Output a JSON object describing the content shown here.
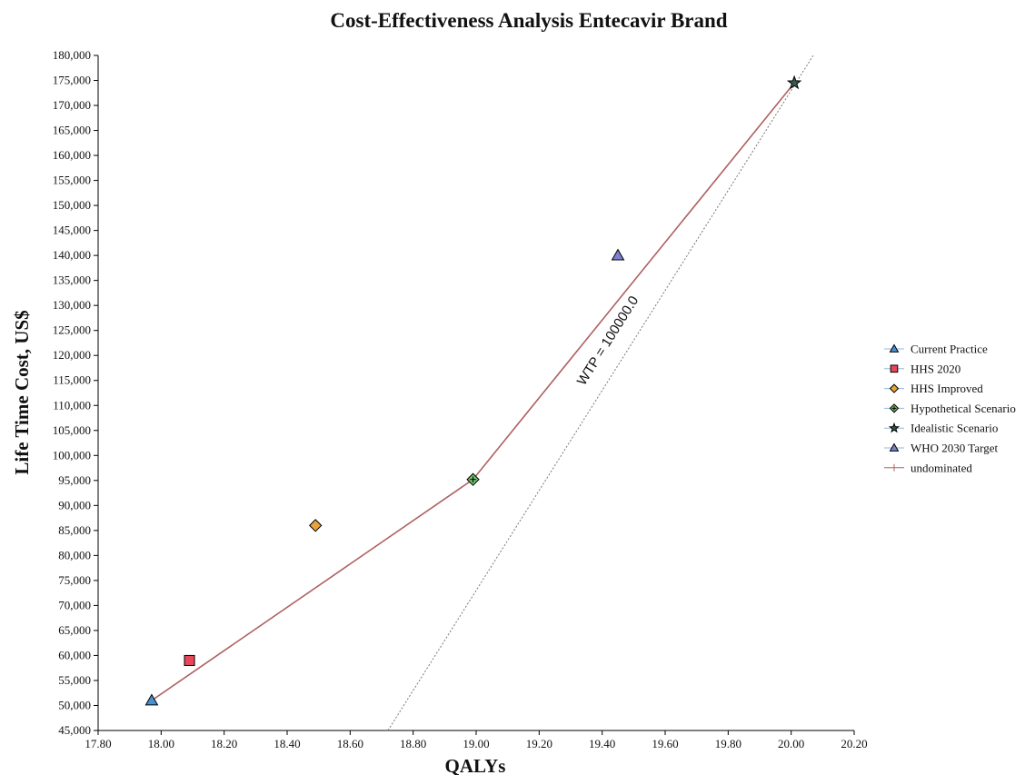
{
  "chart_data": {
    "type": "scatter",
    "title": "Cost-Effectiveness Analysis Entecavir Brand",
    "xlabel": "QALYs",
    "ylabel": "Life Time Cost, US$",
    "xlim": [
      17.8,
      20.2
    ],
    "ylim": [
      45000,
      180000
    ],
    "x_ticks": [
      17.8,
      18.0,
      18.2,
      18.4,
      18.6,
      18.8,
      19.0,
      19.2,
      19.4,
      19.6,
      19.8,
      20.0,
      20.2
    ],
    "x_tick_labels": [
      "17.80",
      "18.00",
      "18.20",
      "18.40",
      "18.60",
      "18.80",
      "19.00",
      "19.20",
      "19.40",
      "19.60",
      "19.80",
      "20.00",
      "20.20"
    ],
    "y_ticks": [
      45000,
      50000,
      55000,
      60000,
      65000,
      70000,
      75000,
      80000,
      85000,
      90000,
      95000,
      100000,
      105000,
      110000,
      115000,
      120000,
      125000,
      130000,
      135000,
      140000,
      145000,
      150000,
      155000,
      160000,
      165000,
      170000,
      175000,
      180000
    ],
    "y_tick_labels": [
      "45,000",
      "50,000",
      "55,000",
      "60,000",
      "65,000",
      "70,000",
      "75,000",
      "80,000",
      "85,000",
      "90,000",
      "95,000",
      "100,000",
      "105,000",
      "110,000",
      "115,000",
      "120,000",
      "125,000",
      "130,000",
      "135,000",
      "140,000",
      "145,000",
      "150,000",
      "155,000",
      "160,000",
      "165,000",
      "170,000",
      "175,000",
      "180,000"
    ],
    "series": [
      {
        "name": "Current Practice",
        "x": 17.97,
        "y": 51000,
        "marker": "triangle",
        "color": "#4a90d0"
      },
      {
        "name": "HHS 2020",
        "x": 18.09,
        "y": 59000,
        "marker": "square",
        "color": "#e8475a"
      },
      {
        "name": "HHS Improved",
        "x": 18.49,
        "y": 86000,
        "marker": "diamond",
        "color": "#e8a33a"
      },
      {
        "name": "Hypothetical Scenario",
        "x": 18.99,
        "y": 95200,
        "marker": "diamond-cross",
        "color": "#6fc06a"
      },
      {
        "name": "Idealistic Scenario",
        "x": 20.01,
        "y": 174500,
        "marker": "star",
        "color": "#3a5a4a"
      },
      {
        "name": "WHO 2030 Target",
        "x": 19.45,
        "y": 140000,
        "marker": "triangle",
        "color": "#7d7fd0"
      }
    ],
    "undominated": {
      "name": "undominated",
      "color": "#b06060",
      "x": [
        17.97,
        18.99,
        20.01
      ],
      "y": [
        51000,
        95200,
        174500
      ]
    },
    "wtp_line": {
      "label": "WTP = 100000.0",
      "x": [
        18.72,
        20.07
      ],
      "y": [
        45000,
        180000
      ]
    },
    "legend_position": "right",
    "grid": false
  }
}
